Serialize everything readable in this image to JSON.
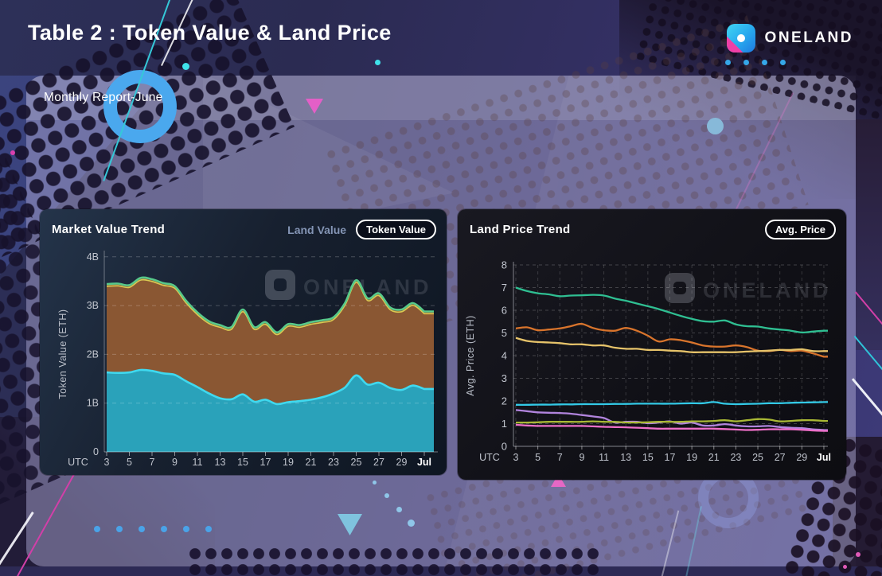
{
  "slide": {
    "title": "Table 2 : Token Value & Land Price",
    "subtitle": "Monthly Report-June",
    "brand": "ONELAND"
  },
  "colors": {
    "accent_blue": "#4aa8ee",
    "brand_cyan": "#35c8ef",
    "brand_pink": "#ef3fa6"
  },
  "market_chart": {
    "title": "Market Value Trend",
    "toggle_inactive": "Land Value",
    "toggle_active": "Token Value"
  },
  "land_chart": {
    "title": "Land Price Trend",
    "badge": "Avg. Price"
  },
  "chart_data": [
    {
      "type": "area",
      "title": "Market Value Trend",
      "ylabel": "Token Value (ETH)",
      "corner_label": "UTC",
      "watermark": "ONELAND",
      "ylim": [
        0,
        4
      ],
      "y_unit": "billions ETH",
      "grid": "horizontal dashed",
      "legend_position": "top-right toggle",
      "x_days": [
        3,
        4,
        5,
        6,
        7,
        8,
        9,
        10,
        11,
        12,
        13,
        14,
        15,
        16,
        17,
        18,
        19,
        20,
        21,
        22,
        23,
        24,
        25,
        26,
        27,
        28,
        29,
        30,
        31
      ],
      "x_tick_values": [
        3,
        5,
        7,
        9,
        11,
        13,
        15,
        17,
        19,
        21,
        23,
        25,
        27,
        29,
        31
      ],
      "x_tick_labels": [
        "3",
        "5",
        "7",
        "9",
        "11",
        "13",
        "15",
        "17",
        "19",
        "21",
        "23",
        "25",
        "27",
        "29",
        "Jul"
      ],
      "y_tick_values": [
        4,
        3,
        2,
        1,
        0
      ],
      "y_tick_labels": [
        "4B",
        "3B",
        "2B",
        "1B",
        "0"
      ],
      "series": [
        {
          "name": "total-market-value-upper-bound",
          "line_color": "#57c98a",
          "accent_line_color": "#d9ca52",
          "fill_color": "#8a5733",
          "values": [
            3.44,
            3.45,
            3.42,
            3.57,
            3.54,
            3.46,
            3.4,
            3.1,
            2.86,
            2.68,
            2.6,
            2.56,
            2.92,
            2.56,
            2.66,
            2.45,
            2.62,
            2.6,
            2.66,
            2.7,
            2.76,
            3.05,
            3.52,
            3.15,
            3.25,
            2.96,
            2.92,
            3.05,
            2.88
          ]
        },
        {
          "name": "token-value-lower-band",
          "line_color": "#3fd9ef",
          "fill_color": "#2aa2ba",
          "values": [
            1.63,
            1.62,
            1.63,
            1.68,
            1.66,
            1.61,
            1.58,
            1.45,
            1.33,
            1.2,
            1.1,
            1.08,
            1.18,
            1.03,
            1.07,
            0.98,
            1.02,
            1.04,
            1.07,
            1.12,
            1.2,
            1.32,
            1.57,
            1.38,
            1.42,
            1.31,
            1.27,
            1.36,
            1.29
          ]
        }
      ]
    },
    {
      "type": "line",
      "title": "Land Price Trend",
      "ylabel": "Avg. Price (ETH)",
      "corner_label": "UTC",
      "watermark": "ONELAND",
      "ylim": [
        0,
        8
      ],
      "grid": "full dashed",
      "x_days": [
        3,
        4,
        5,
        6,
        7,
        8,
        9,
        10,
        11,
        12,
        13,
        14,
        15,
        16,
        17,
        18,
        19,
        20,
        21,
        22,
        23,
        24,
        25,
        26,
        27,
        28,
        29,
        30,
        31
      ],
      "x_tick_values": [
        3,
        5,
        7,
        9,
        11,
        13,
        15,
        17,
        19,
        21,
        23,
        25,
        27,
        29,
        31
      ],
      "x_tick_labels": [
        "3",
        "5",
        "7",
        "9",
        "11",
        "13",
        "15",
        "17",
        "19",
        "21",
        "23",
        "25",
        "27",
        "29",
        "Jul"
      ],
      "y_tick_values": [
        8,
        7,
        6,
        5,
        4,
        3,
        2,
        1,
        0
      ],
      "y_tick_labels": [
        "8",
        "7",
        "6",
        "5",
        "4",
        "3",
        "2",
        "1",
        "0"
      ],
      "series": [
        {
          "name": "green-line",
          "line_color": "#2fbf92",
          "values": [
            7.0,
            6.85,
            6.75,
            6.7,
            6.62,
            6.65,
            6.66,
            6.68,
            6.65,
            6.52,
            6.42,
            6.3,
            6.18,
            6.05,
            5.9,
            5.75,
            5.62,
            5.52,
            5.5,
            5.55,
            5.38,
            5.3,
            5.28,
            5.2,
            5.15,
            5.1,
            5.02,
            5.06,
            5.1
          ]
        },
        {
          "name": "orange-line",
          "line_color": "#d8742c",
          "values": [
            5.2,
            5.25,
            5.12,
            5.15,
            5.2,
            5.3,
            5.4,
            5.22,
            5.12,
            5.1,
            5.22,
            5.1,
            4.88,
            4.62,
            4.72,
            4.68,
            4.58,
            4.45,
            4.4,
            4.4,
            4.45,
            4.38,
            4.22,
            4.2,
            4.25,
            4.2,
            4.22,
            4.1,
            3.95
          ]
        },
        {
          "name": "khaki-line",
          "line_color": "#e6c36a",
          "values": [
            4.78,
            4.65,
            4.6,
            4.58,
            4.55,
            4.5,
            4.5,
            4.45,
            4.45,
            4.35,
            4.3,
            4.3,
            4.25,
            4.25,
            4.22,
            4.2,
            4.15,
            4.15,
            4.15,
            4.15,
            4.15,
            4.18,
            4.2,
            4.22,
            4.25,
            4.25,
            4.28,
            4.2,
            4.2
          ]
        },
        {
          "name": "cyan-line",
          "line_color": "#33c9e6",
          "values": [
            1.83,
            1.83,
            1.84,
            1.84,
            1.85,
            1.85,
            1.86,
            1.86,
            1.86,
            1.87,
            1.87,
            1.88,
            1.88,
            1.88,
            1.88,
            1.89,
            1.9,
            1.9,
            1.95,
            1.88,
            1.86,
            1.87,
            1.88,
            1.9,
            1.9,
            1.92,
            1.93,
            1.94,
            1.95
          ]
        },
        {
          "name": "purple-line",
          "line_color": "#b184dd",
          "values": [
            1.6,
            1.55,
            1.5,
            1.48,
            1.47,
            1.44,
            1.38,
            1.32,
            1.25,
            1.05,
            1.08,
            1.08,
            1.02,
            1.05,
            1.1,
            1.0,
            1.05,
            0.92,
            0.92,
            0.98,
            0.92,
            0.88,
            0.88,
            0.9,
            0.85,
            0.82,
            0.8,
            0.75,
            0.72
          ]
        },
        {
          "name": "olive-line",
          "line_color": "#a9b835",
          "values": [
            1.05,
            1.05,
            1.06,
            1.08,
            1.08,
            1.08,
            1.08,
            1.1,
            1.08,
            1.08,
            1.05,
            1.05,
            1.06,
            1.08,
            1.08,
            1.08,
            1.1,
            1.1,
            1.12,
            1.15,
            1.1,
            1.15,
            1.2,
            1.18,
            1.1,
            1.12,
            1.15,
            1.15,
            1.12
          ]
        },
        {
          "name": "pink-line",
          "line_color": "#ee6fc8",
          "values": [
            0.95,
            0.92,
            0.9,
            0.9,
            0.9,
            0.9,
            0.9,
            0.88,
            0.86,
            0.85,
            0.84,
            0.82,
            0.8,
            0.78,
            0.78,
            0.78,
            0.78,
            0.78,
            0.78,
            0.76,
            0.74,
            0.72,
            0.73,
            0.75,
            0.75,
            0.75,
            0.73,
            0.7,
            0.68
          ]
        }
      ]
    }
  ]
}
